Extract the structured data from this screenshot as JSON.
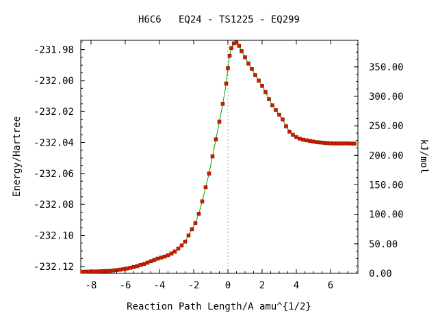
{
  "chart_data": {
    "type": "line",
    "title": "H6C6   EQ24 - TS1225 - EQ299",
    "xlabel": "Reaction Path Length/A amu^{1/2}",
    "ylabel": "Energy/Hartree",
    "y2label": "kJ/mol",
    "xlim": [
      -8.6,
      7.6
    ],
    "ylim": [
      -232.1245,
      -231.974
    ],
    "y2lim": [
      0,
      395
    ],
    "x_ticks": [
      -8,
      -6,
      -4,
      -2,
      0,
      2,
      4,
      6
    ],
    "x_tick_labels": [
      "-8",
      "-6",
      "-4",
      "-2",
      "0",
      "2",
      "4",
      "6"
    ],
    "y_ticks": [
      -231.98,
      -232.0,
      -232.02,
      -232.04,
      -232.06,
      -232.08,
      -232.1,
      -232.12
    ],
    "y_tick_labels": [
      "-231.98",
      "-232.00",
      "-232.02",
      "-232.04",
      "-232.06",
      "-232.08",
      "-232.10",
      "-232.12"
    ],
    "y2_ticks": [
      0,
      50,
      100,
      150,
      200,
      250,
      300,
      350
    ],
    "y2_tick_labels": [
      "0.00",
      "50.00",
      "100.00",
      "150.00",
      "200.00",
      "250.00",
      "300.00",
      "350.00"
    ],
    "ts_x": 0.0,
    "line_color": "#00a000",
    "marker_color": "#c81e00",
    "marker_edge_color": "#8a1400",
    "ts_line_color": "#a0a0a0",
    "series": [
      {
        "x": [
          -8.5,
          -8.3,
          -8.1,
          -7.9,
          -7.7,
          -7.5,
          -7.3,
          -7.1,
          -6.9,
          -6.7,
          -6.5,
          -6.3,
          -6.1,
          -5.9,
          -5.7,
          -5.5,
          -5.3,
          -5.1,
          -4.9,
          -4.7,
          -4.5,
          -4.3,
          -4.1,
          -3.9,
          -3.7,
          -3.5,
          -3.3,
          -3.1,
          -2.9,
          -2.7,
          -2.5,
          -2.3,
          -2.1,
          -1.9,
          -1.7,
          -1.5,
          -1.3,
          -1.1,
          -0.9,
          -0.7,
          -0.5,
          -0.3,
          -0.1,
          0.0,
          0.1,
          0.2,
          0.35,
          0.5,
          0.65,
          0.8,
          1.0,
          1.2,
          1.4,
          1.6,
          1.8,
          2.0,
          2.2,
          2.4,
          2.6,
          2.8,
          3.0,
          3.2,
          3.4,
          3.6,
          3.8,
          4.0,
          4.2,
          4.4,
          4.6,
          4.8,
          5.0,
          5.2,
          5.4,
          5.6,
          5.8,
          6.0,
          6.2,
          6.4,
          6.6,
          6.8,
          7.0,
          7.2,
          7.4
        ],
        "y": [
          -232.1235,
          -232.1234,
          -232.1234,
          -232.1233,
          -232.1233,
          -232.1232,
          -232.1231,
          -232.123,
          -232.1229,
          -232.1227,
          -232.1224,
          -232.1221,
          -232.1218,
          -232.1214,
          -232.1209,
          -232.1204,
          -232.1198,
          -232.1191,
          -232.1184,
          -232.1176,
          -232.1167,
          -232.1158,
          -232.115,
          -232.1143,
          -232.1137,
          -232.1128,
          -232.1117,
          -232.1104,
          -232.1085,
          -232.1065,
          -232.104,
          -232.1,
          -232.096,
          -232.092,
          -232.086,
          -232.078,
          -232.069,
          -232.06,
          -232.049,
          -232.038,
          -232.0265,
          -232.015,
          -232.002,
          -231.992,
          -231.984,
          -231.979,
          -231.976,
          -231.9755,
          -231.9775,
          -231.981,
          -231.985,
          -231.989,
          -231.9925,
          -231.9965,
          -232.0,
          -232.0035,
          -232.0075,
          -232.012,
          -232.016,
          -232.019,
          -232.022,
          -232.025,
          -232.0295,
          -232.033,
          -232.035,
          -232.0365,
          -232.0375,
          -232.0382,
          -232.0386,
          -232.039,
          -232.0394,
          -232.0398,
          -232.04,
          -232.0402,
          -232.0404,
          -232.0405,
          -232.0406,
          -232.0406,
          -232.0406,
          -232.0406,
          -232.0406,
          -232.0407,
          -232.0407
        ]
      }
    ]
  }
}
